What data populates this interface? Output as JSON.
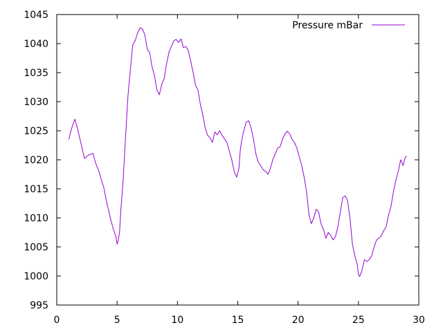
{
  "chart_data": {
    "type": "line",
    "title": "",
    "xlabel": "",
    "ylabel": "",
    "xlim": [
      0,
      30
    ],
    "ylim": [
      995,
      1045
    ],
    "xticks": [
      0,
      5,
      10,
      15,
      20,
      25,
      30
    ],
    "yticks": [
      995,
      1000,
      1005,
      1010,
      1015,
      1020,
      1025,
      1030,
      1035,
      1040,
      1045
    ],
    "grid": false,
    "legend_position": "top-right",
    "series": [
      {
        "name": "Pressure mBar",
        "color": "#9400d3",
        "x": [
          1.0,
          1.2,
          1.4,
          1.5,
          1.7,
          1.9,
          2.1,
          2.3,
          2.5,
          2.7,
          2.9,
          3.0,
          3.1,
          3.3,
          3.5,
          3.7,
          3.9,
          4.1,
          4.3,
          4.5,
          4.7,
          4.9,
          5.0,
          5.1,
          5.2,
          5.3,
          5.5,
          5.7,
          5.9,
          6.1,
          6.3,
          6.5,
          6.7,
          6.9,
          7.1,
          7.3,
          7.5,
          7.7,
          7.9,
          8.1,
          8.3,
          8.5,
          8.7,
          8.9,
          9.1,
          9.3,
          9.5,
          9.7,
          9.9,
          10.1,
          10.3,
          10.5,
          10.7,
          10.9,
          11.1,
          11.3,
          11.5,
          11.7,
          11.9,
          12.1,
          12.3,
          12.5,
          12.7,
          12.9,
          13.1,
          13.3,
          13.5,
          13.7,
          13.9,
          14.1,
          14.3,
          14.5,
          14.7,
          14.9,
          15.1,
          15.2,
          15.3,
          15.5,
          15.7,
          15.9,
          16.1,
          16.3,
          16.5,
          16.7,
          16.9,
          17.1,
          17.3,
          17.5,
          17.7,
          17.9,
          18.1,
          18.3,
          18.5,
          18.7,
          18.9,
          19.1,
          19.3,
          19.5,
          19.7,
          19.9,
          20.1,
          20.3,
          20.5,
          20.7,
          20.9,
          21.1,
          21.3,
          21.5,
          21.7,
          21.9,
          22.1,
          22.3,
          22.5,
          22.7,
          22.9,
          23.1,
          23.3,
          23.5,
          23.7,
          23.9,
          24.1,
          24.3,
          24.5,
          24.7,
          24.9,
          25.0,
          25.1,
          25.3,
          25.5,
          25.7,
          25.9,
          26.1,
          26.3,
          26.5,
          26.7,
          26.9,
          27.1,
          27.3,
          27.5,
          27.7,
          27.9,
          28.1,
          28.3,
          28.5,
          28.7,
          28.9,
          29.0
        ],
        "y": [
          1023.5,
          1025.2,
          1026.4,
          1027.0,
          1025.5,
          1023.8,
          1022.0,
          1020.2,
          1020.6,
          1020.9,
          1021.0,
          1021.1,
          1020.3,
          1019.0,
          1018.0,
          1016.5,
          1015.2,
          1013.0,
          1011.2,
          1009.5,
          1008.0,
          1006.8,
          1005.5,
          1006.2,
          1007.5,
          1011.0,
          1016.5,
          1024.0,
          1031.0,
          1035.5,
          1039.8,
          1040.5,
          1041.8,
          1042.7,
          1042.5,
          1041.5,
          1039.0,
          1038.5,
          1036.0,
          1034.5,
          1032.0,
          1031.2,
          1033.0,
          1034.0,
          1036.5,
          1038.5,
          1039.5,
          1040.5,
          1040.7,
          1040.2,
          1040.8,
          1039.3,
          1039.5,
          1038.8,
          1037.0,
          1035.0,
          1032.8,
          1032.0,
          1029.5,
          1027.8,
          1025.5,
          1024.2,
          1023.8,
          1023.0,
          1024.8,
          1024.3,
          1025.0,
          1024.2,
          1023.6,
          1023.0,
          1021.5,
          1020.0,
          1018.0,
          1017.0,
          1018.5,
          1021.5,
          1023.0,
          1025.0,
          1026.5,
          1026.7,
          1025.5,
          1023.5,
          1021.0,
          1019.6,
          1019.0,
          1018.3,
          1018.0,
          1017.5,
          1018.5,
          1020.0,
          1021.0,
          1022.0,
          1022.2,
          1023.5,
          1024.4,
          1024.9,
          1024.5,
          1023.5,
          1023.0,
          1022.0,
          1020.5,
          1019.0,
          1017.0,
          1014.5,
          1010.5,
          1009.0,
          1010.0,
          1011.5,
          1011.0,
          1009.0,
          1008.0,
          1006.5,
          1007.5,
          1007.0,
          1006.2,
          1006.8,
          1008.5,
          1011.0,
          1013.5,
          1013.8,
          1013.0,
          1010.0,
          1005.5,
          1003.5,
          1002.0,
          1000.3,
          999.9,
          1001.0,
          1002.8,
          1002.5,
          1002.8,
          1003.5,
          1005.0,
          1006.2,
          1006.5,
          1007.0,
          1007.8,
          1008.5,
          1010.5,
          1012.0,
          1014.5,
          1016.5,
          1018.0,
          1020.0,
          1019.0,
          1020.5,
          1020.6
        ]
      }
    ]
  }
}
